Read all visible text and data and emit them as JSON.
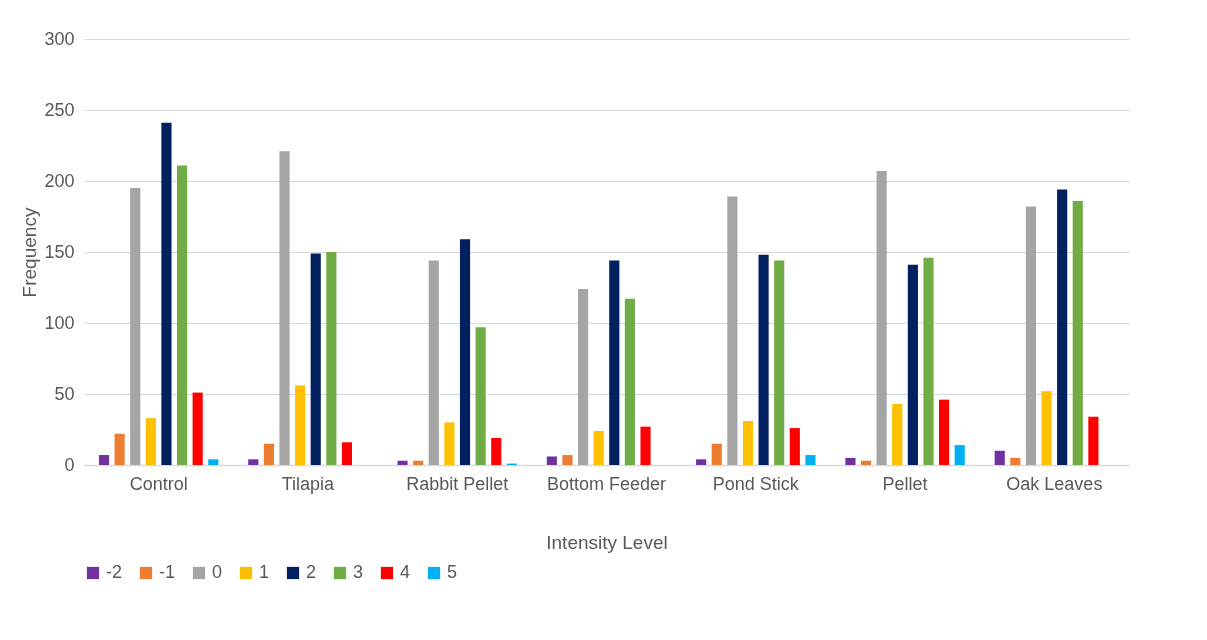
{
  "chart_data": {
    "type": "bar",
    "xlabel": "Intensity Level",
    "ylabel": "Frequency",
    "categories": [
      "Control",
      "Tilapia",
      "Rabbit Pellet",
      "Bottom Feeder",
      "Pond Stick",
      "Pellet",
      "Oak Leaves"
    ],
    "series": [
      {
        "name": "-2",
        "color": "#7030a0",
        "values": [
          7,
          4,
          3,
          6,
          4,
          5,
          10
        ]
      },
      {
        "name": "-1",
        "color": "#ed7d31",
        "values": [
          22,
          15,
          3,
          7,
          15,
          3,
          5
        ]
      },
      {
        "name": "0",
        "color": "#a5a5a5",
        "values": [
          195,
          221,
          144,
          124,
          189,
          207,
          182
        ]
      },
      {
        "name": "1",
        "color": "#ffc000",
        "values": [
          33,
          56,
          30,
          24,
          31,
          43,
          52
        ]
      },
      {
        "name": "2",
        "color": "#002060",
        "values": [
          241,
          149,
          159,
          144,
          148,
          141,
          194
        ]
      },
      {
        "name": "3",
        "color": "#70ad47",
        "values": [
          211,
          150,
          97,
          117,
          144,
          146,
          186
        ]
      },
      {
        "name": "4",
        "color": "#ff0000",
        "values": [
          51,
          16,
          19,
          27,
          26,
          46,
          34
        ]
      },
      {
        "name": "5",
        "color": "#00b0f0",
        "values": [
          4,
          0,
          1,
          0,
          7,
          14,
          0
        ]
      }
    ],
    "ylim": [
      0,
      300
    ],
    "yticks": [
      0,
      50,
      100,
      150,
      200,
      250,
      300
    ],
    "grid": "y",
    "legend": "bottom"
  }
}
